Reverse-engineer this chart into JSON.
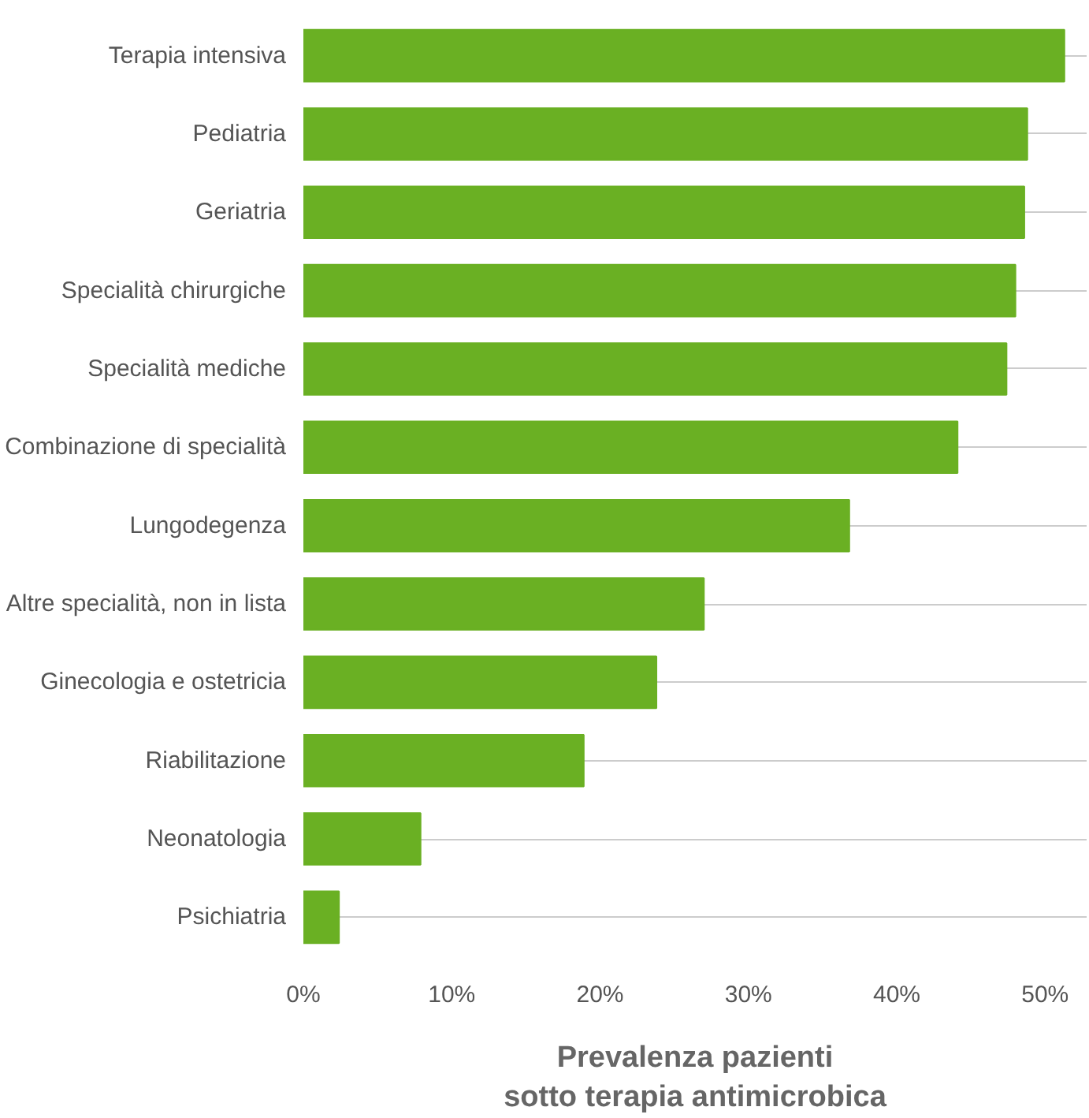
{
  "chart_data": {
    "type": "bar",
    "orientation": "horizontal",
    "categories": [
      "Terapia intensiva",
      "Pediatria",
      "Geriatria",
      "Specialità chirurgiche",
      "Specialità mediche",
      "Combinazione di specialità",
      "Lungodegenza",
      "Altre specialità, non in lista",
      "Ginecologia e ostetricia",
      "Riabilitazione",
      "Neonatologia",
      "Psichiatria"
    ],
    "values": [
      51.3,
      48.8,
      48.6,
      48.0,
      47.4,
      44.1,
      36.8,
      27.0,
      23.8,
      18.9,
      7.9,
      2.4
    ],
    "color": "#6ab023",
    "xlabel": "Prevalenza pazienti\nsotto terapia antimicrobica",
    "xlim": [
      0,
      52.8
    ],
    "xticks": [
      {
        "value": 0,
        "label": "0%"
      },
      {
        "value": 10,
        "label": "10%"
      },
      {
        "value": 20,
        "label": "20%"
      },
      {
        "value": 30,
        "label": "30%"
      },
      {
        "value": 40,
        "label": "40%"
      },
      {
        "value": 50,
        "label": "50%"
      }
    ],
    "grid": "y"
  }
}
